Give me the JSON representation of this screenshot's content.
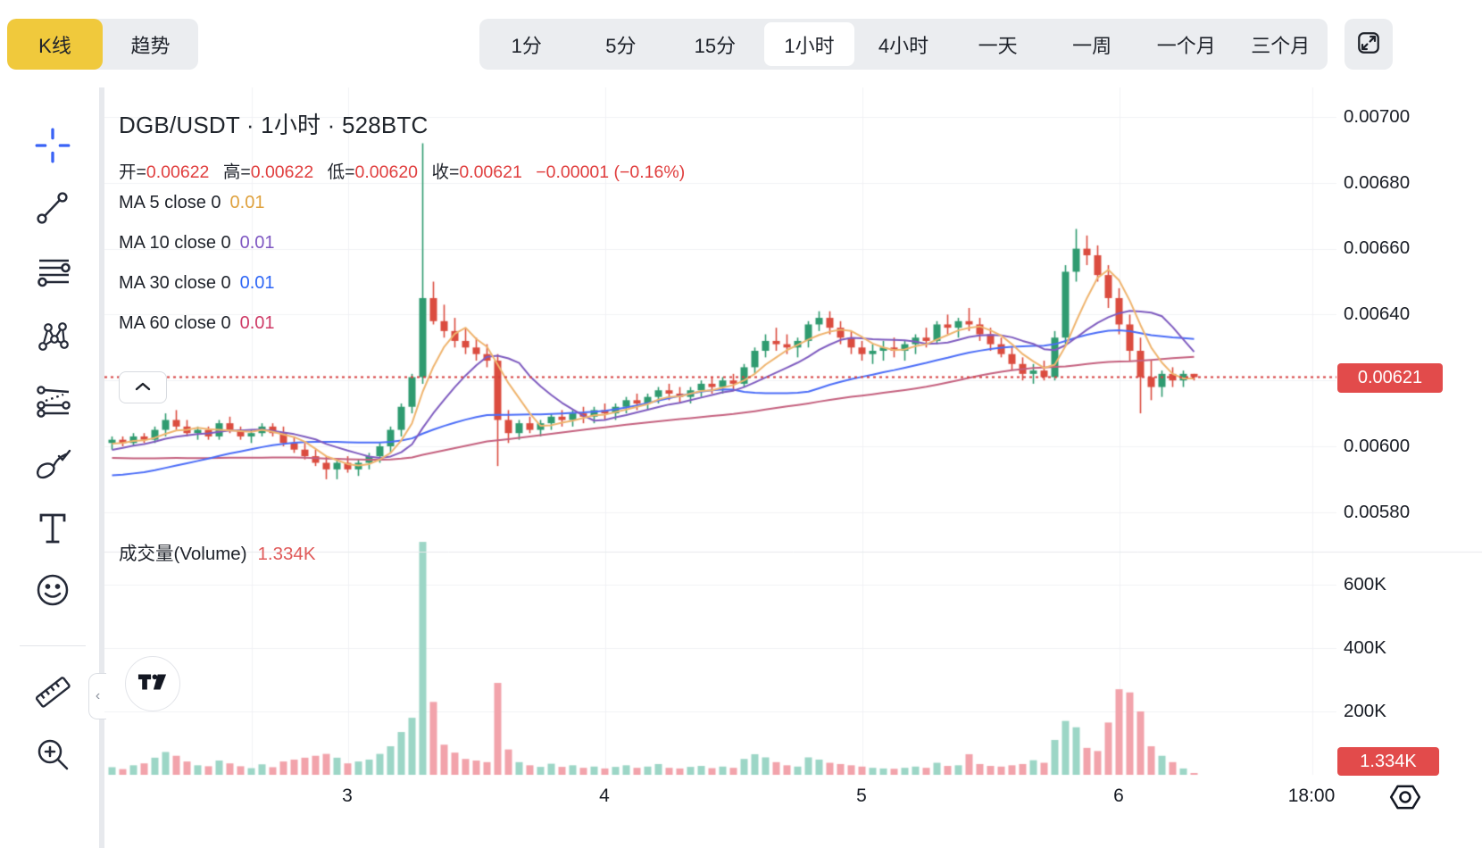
{
  "toolbar": {
    "chart_type_tabs": [
      {
        "label": "K线",
        "active": true
      },
      {
        "label": "趋势",
        "active": false
      }
    ],
    "interval_tabs": [
      {
        "label": "1分",
        "active": false
      },
      {
        "label": "5分",
        "active": false
      },
      {
        "label": "15分",
        "active": false
      },
      {
        "label": "1小时",
        "active": true
      },
      {
        "label": "4小时",
        "active": false
      },
      {
        "label": "一天",
        "active": false
      },
      {
        "label": "一周",
        "active": false
      },
      {
        "label": "一个月",
        "active": false
      },
      {
        "label": "三个月",
        "active": false
      }
    ],
    "accent_yellow": "#F0C93C"
  },
  "sidebar": {
    "tools": [
      "crosshair",
      "trend-line",
      "horizontal-lines",
      "xabcd-pattern",
      "parallel-channel",
      "brush",
      "text",
      "emoji",
      "ruler",
      "zoom-in"
    ],
    "crosshair_color": "#3b63f6"
  },
  "legend": {
    "title": "DGB/USDT · 1小时 · 528BTC",
    "ohlc": [
      {
        "label": "开=",
        "value": "0.00622"
      },
      {
        "label": "高=",
        "value": "0.00622"
      },
      {
        "label": "低=",
        "value": "0.00620"
      },
      {
        "label": "收=",
        "value": "0.00621"
      }
    ],
    "change": "−0.00001 (−0.16%)",
    "ma_rows": [
      {
        "label": "MA 5 close 0",
        "value": "0.01",
        "color": "#DFA13D"
      },
      {
        "label": "MA 10 close 0",
        "value": "0.01",
        "color": "#7E57C2"
      },
      {
        "label": "MA 30 close 0",
        "value": "0.01",
        "color": "#2E66F6"
      },
      {
        "label": "MA 60 close 0",
        "value": "0.01",
        "color": "#CE3A66"
      }
    ]
  },
  "volume_panel": {
    "label": "成交量(Volume)",
    "value": "1.334K"
  },
  "chart_data": {
    "type": "candlestick",
    "title": "DGB/USDT · 1小时 · 528BTC",
    "pair": "DGB/USDT",
    "interval": "1小时",
    "market_note": "528BTC",
    "grid": true,
    "legend_position": "top-left",
    "price_axis_ticks": [
      "0.00700",
      "0.00680",
      "0.00660",
      "0.00640",
      "0.00600",
      "0.00580"
    ],
    "ylim": [
      0.00574,
      0.00702
    ],
    "current_price": "0.00621",
    "volume_axis_ticks": [
      "600K",
      "400K",
      "200K"
    ],
    "current_volume": "1.334K",
    "time_ticks": [
      {
        "label": "3",
        "index": 22
      },
      {
        "label": "4",
        "index": 46
      },
      {
        "label": "5",
        "index": 70
      },
      {
        "label": "6",
        "index": 94
      },
      {
        "label": "18:00",
        "index": 112
      }
    ],
    "grid_line_indices": [
      13,
      22,
      46,
      70,
      94,
      112
    ],
    "price_unit": 1e-05,
    "volume_unit": "K",
    "candles_ohlcv": [
      [
        601,
        603,
        599,
        602,
        24
      ],
      [
        602,
        603,
        600,
        601,
        18
      ],
      [
        601,
        604,
        600,
        603,
        30
      ],
      [
        603,
        604,
        601,
        602,
        36
      ],
      [
        602,
        606,
        601,
        605,
        54
      ],
      [
        605,
        610,
        603,
        608,
        72
      ],
      [
        608,
        611,
        605,
        606,
        60
      ],
      [
        606,
        608,
        603,
        604,
        42
      ],
      [
        604,
        606,
        602,
        605,
        30
      ],
      [
        605,
        606,
        602,
        603,
        27
      ],
      [
        603,
        608,
        602,
        607,
        45
      ],
      [
        607,
        609,
        604,
        605,
        36
      ],
      [
        605,
        606,
        602,
        603,
        27
      ],
      [
        603,
        605,
        601,
        604,
        21
      ],
      [
        604,
        607,
        603,
        606,
        33
      ],
      [
        606,
        607,
        603,
        604,
        24
      ],
      [
        604,
        606,
        600,
        601,
        42
      ],
      [
        601,
        603,
        598,
        599,
        48
      ],
      [
        599,
        601,
        596,
        597,
        54
      ],
      [
        597,
        599,
        594,
        595,
        60
      ],
      [
        595,
        597,
        590,
        593,
        66
      ],
      [
        593,
        596,
        590,
        595,
        54
      ],
      [
        595,
        597,
        592,
        593,
        36
      ],
      [
        593,
        596,
        591,
        595,
        42
      ],
      [
        595,
        598,
        593,
        597,
        48
      ],
      [
        597,
        601,
        595,
        600,
        66
      ],
      [
        600,
        606,
        598,
        605,
        90
      ],
      [
        605,
        613,
        603,
        612,
        135
      ],
      [
        612,
        622,
        610,
        621,
        180
      ],
      [
        621,
        692,
        619,
        645,
        735
      ],
      [
        645,
        650,
        637,
        638,
        230
      ],
      [
        638,
        643,
        633,
        635,
        95
      ],
      [
        635,
        639,
        630,
        632,
        70
      ],
      [
        632,
        636,
        628,
        630,
        50
      ],
      [
        630,
        633,
        626,
        628,
        45
      ],
      [
        628,
        631,
        624,
        626,
        40
      ],
      [
        626,
        628,
        594,
        608,
        290
      ],
      [
        608,
        611,
        601,
        604,
        80
      ],
      [
        604,
        608,
        602,
        607,
        40
      ],
      [
        607,
        609,
        604,
        605,
        30
      ],
      [
        605,
        608,
        603,
        607,
        25
      ],
      [
        607,
        610,
        605,
        609,
        35
      ],
      [
        609,
        611,
        606,
        608,
        25
      ],
      [
        608,
        611,
        606,
        610,
        30
      ],
      [
        610,
        612,
        607,
        609,
        22
      ],
      [
        609,
        612,
        607,
        611,
        26
      ],
      [
        611,
        613,
        608,
        610,
        20
      ],
      [
        610,
        613,
        608,
        612,
        25
      ],
      [
        612,
        615,
        610,
        614,
        30
      ],
      [
        614,
        616,
        611,
        613,
        22
      ],
      [
        613,
        616,
        611,
        615,
        26
      ],
      [
        615,
        618,
        613,
        617,
        34
      ],
      [
        617,
        619,
        614,
        616,
        22
      ],
      [
        616,
        618,
        613,
        615,
        20
      ],
      [
        615,
        618,
        613,
        617,
        25
      ],
      [
        617,
        620,
        615,
        619,
        28
      ],
      [
        619,
        621,
        616,
        618,
        21
      ],
      [
        618,
        621,
        616,
        620,
        26
      ],
      [
        620,
        622,
        617,
        619,
        22
      ],
      [
        619,
        625,
        618,
        624,
        50
      ],
      [
        624,
        630,
        622,
        629,
        65
      ],
      [
        629,
        634,
        627,
        632,
        55
      ],
      [
        632,
        636,
        629,
        631,
        40
      ],
      [
        631,
        634,
        628,
        630,
        30
      ],
      [
        630,
        633,
        627,
        632,
        26
      ],
      [
        632,
        638,
        630,
        637,
        55
      ],
      [
        637,
        641,
        635,
        639,
        48
      ],
      [
        639,
        641,
        634,
        636,
        38
      ],
      [
        636,
        638,
        631,
        633,
        34
      ],
      [
        633,
        635,
        628,
        630,
        30
      ],
      [
        630,
        632,
        626,
        628,
        26
      ],
      [
        628,
        631,
        625,
        629,
        22
      ],
      [
        629,
        632,
        626,
        630,
        20
      ],
      [
        630,
        633,
        627,
        629,
        19
      ],
      [
        629,
        632,
        626,
        631,
        22
      ],
      [
        631,
        634,
        628,
        633,
        26
      ],
      [
        633,
        636,
        630,
        632,
        22
      ],
      [
        632,
        638,
        631,
        637,
        38
      ],
      [
        637,
        640,
        634,
        636,
        28
      ],
      [
        636,
        639,
        633,
        638,
        30
      ],
      [
        638,
        642,
        635,
        637,
        65
      ],
      [
        637,
        639,
        632,
        634,
        34
      ],
      [
        634,
        636,
        629,
        631,
        28
      ],
      [
        631,
        633,
        627,
        628,
        26
      ],
      [
        628,
        630,
        623,
        625,
        30
      ],
      [
        625,
        627,
        620,
        622,
        34
      ],
      [
        622,
        625,
        619,
        623,
        46
      ],
      [
        623,
        626,
        620,
        621,
        38
      ],
      [
        621,
        635,
        620,
        633,
        110
      ],
      [
        633,
        655,
        631,
        653,
        170
      ],
      [
        653,
        666,
        650,
        660,
        150
      ],
      [
        660,
        664,
        655,
        658,
        85
      ],
      [
        658,
        661,
        650,
        652,
        75
      ],
      [
        652,
        655,
        642,
        645,
        165
      ],
      [
        645,
        648,
        634,
        637,
        270
      ],
      [
        637,
        640,
        626,
        629,
        260
      ],
      [
        629,
        633,
        610,
        621,
        200
      ],
      [
        621,
        626,
        614,
        618,
        90
      ],
      [
        618,
        623,
        615,
        622,
        60
      ],
      [
        622,
        624,
        618,
        620,
        40
      ],
      [
        620,
        623,
        618,
        622,
        20
      ],
      [
        622,
        622,
        620,
        621,
        1.334
      ]
    ],
    "ma_overlays": [
      {
        "name": "MA5",
        "period": 5,
        "color": "#EFB46E"
      },
      {
        "name": "MA10",
        "period": 10,
        "color": "#7E5BBF"
      },
      {
        "name": "MA30",
        "period": 30,
        "color": "#4A6CF7"
      },
      {
        "name": "MA60",
        "period": 60,
        "color": "#C4607E"
      }
    ],
    "ma_seed_closes": [
      603,
      604,
      605,
      604,
      603,
      604,
      605,
      606,
      605,
      604,
      603,
      602,
      603,
      604,
      603,
      602,
      601,
      600,
      601,
      602,
      601,
      600,
      599,
      600,
      601,
      600,
      599,
      598,
      599,
      598,
      596,
      594,
      592,
      590,
      588,
      586,
      585,
      584,
      583,
      582,
      582,
      583,
      584,
      585,
      586,
      587,
      588,
      589,
      591,
      593,
      594,
      595,
      596,
      597,
      598,
      599,
      600,
      600,
      601,
      601
    ],
    "colors": {
      "candle_up": "#2F9B70",
      "candle_down": "#DB4C3F",
      "volume_up": "#9CD6C6",
      "volume_down": "#F2A3AB",
      "current_price_line": "#D63F3F",
      "badge_red": "#E24B4B",
      "grid": "#F1F2F5"
    }
  }
}
